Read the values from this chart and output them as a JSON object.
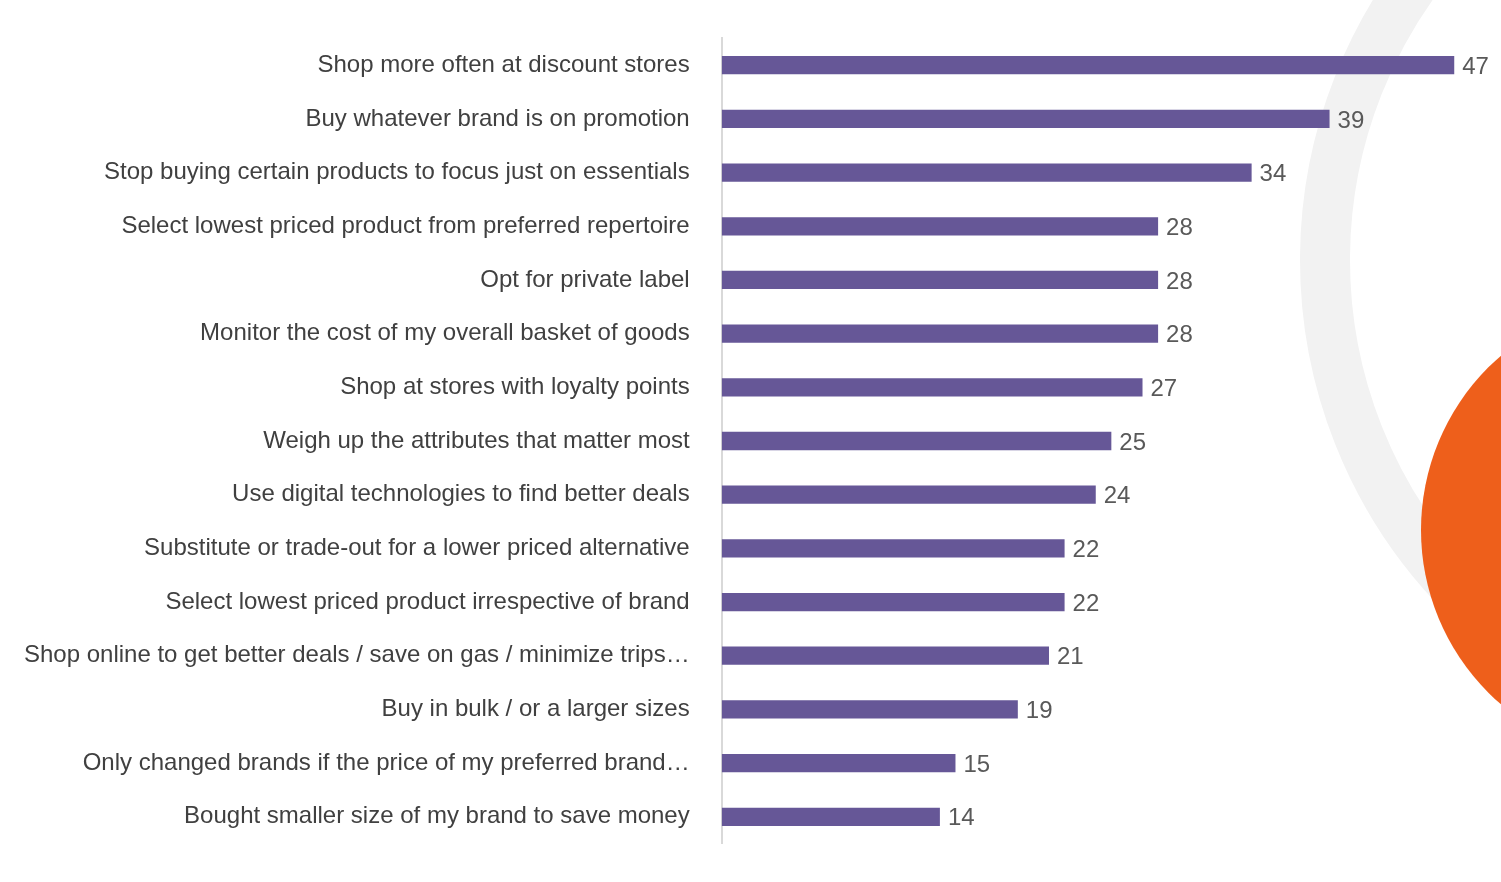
{
  "chart_data": {
    "type": "bar",
    "orientation": "horizontal",
    "data_labels": true,
    "legend": false,
    "color": "#665797",
    "categories": [
      "Shop more often at discount stores",
      "Buy whatever brand is on promotion",
      "Stop buying certain products to focus just on essentials",
      "Select lowest priced product from preferred repertoire",
      "Opt for private label",
      "Monitor the cost of my overall basket of goods",
      "Shop at stores with loyalty points",
      "Weigh up the attributes that matter most",
      "Use digital technologies to find better deals",
      "Substitute or trade-out for a lower priced alternative",
      "Select lowest priced product irrespective of brand",
      "Shop online to get better deals / save on gas / minimize trips…",
      "Buy in bulk / or a larger sizes",
      "Only changed brands if the price of my preferred brand…",
      "Bought smaller size of my brand to save money"
    ],
    "values": [
      47,
      39,
      34,
      28,
      28,
      28,
      27,
      25,
      24,
      22,
      22,
      21,
      19,
      15,
      14
    ]
  }
}
